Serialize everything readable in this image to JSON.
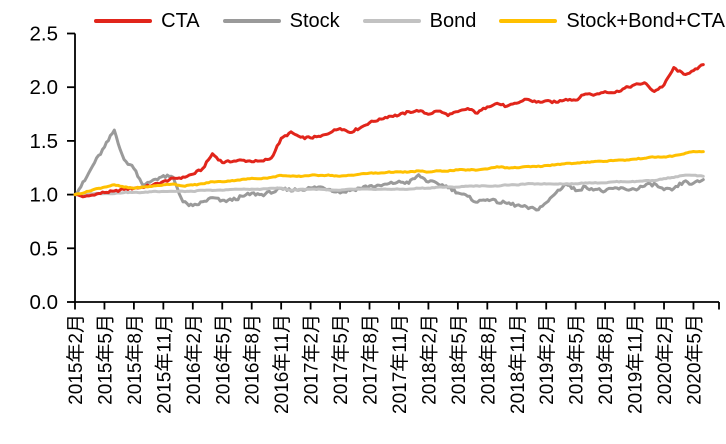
{
  "chart_data": {
    "type": "line",
    "title": "",
    "background": "#FFFFFF",
    "grid": false,
    "legend_position": "top-right",
    "x_axis": {
      "label": "",
      "start_month": "2015-02",
      "point_interval": "1 month",
      "n_points": 65,
      "tick_every_months": 3,
      "tick_labels": [
        "2015年2月",
        "2015年5月",
        "2015年8月",
        "2015年11月",
        "2016年2月",
        "2016年5月",
        "2016年8月",
        "2016年11月",
        "2017年2月",
        "2017年5月",
        "2017年8月",
        "2017年11月",
        "2018年2月",
        "2018年5月",
        "2018年8月",
        "2018年11月",
        "2019年2月",
        "2019年5月",
        "2019年8月",
        "2019年11月",
        "2020年2月",
        "2020年5月"
      ]
    },
    "y_axis": {
      "label": "",
      "min": 0.0,
      "max": 2.5,
      "tick_step": 0.5,
      "tick_labels": [
        "0.0",
        "0.5",
        "1.0",
        "1.5",
        "2.0",
        "2.5"
      ]
    },
    "series": [
      {
        "name": "CTA",
        "color": "#E1251B",
        "values": [
          1.0,
          0.98,
          1.0,
          1.02,
          1.03,
          1.05,
          1.06,
          1.07,
          1.09,
          1.12,
          1.15,
          1.16,
          1.19,
          1.24,
          1.38,
          1.3,
          1.31,
          1.32,
          1.31,
          1.31,
          1.34,
          1.52,
          1.58,
          1.53,
          1.53,
          1.54,
          1.58,
          1.62,
          1.58,
          1.62,
          1.67,
          1.7,
          1.73,
          1.74,
          1.77,
          1.78,
          1.75,
          1.78,
          1.74,
          1.77,
          1.8,
          1.76,
          1.82,
          1.85,
          1.82,
          1.85,
          1.89,
          1.86,
          1.87,
          1.86,
          1.89,
          1.88,
          1.94,
          1.93,
          1.96,
          1.95,
          1.99,
          2.02,
          2.04,
          1.96,
          2.02,
          2.18,
          2.12,
          2.15,
          2.21
        ]
      },
      {
        "name": "Stock",
        "color": "#9A9A9A",
        "values": [
          1.0,
          1.13,
          1.3,
          1.44,
          1.6,
          1.32,
          1.25,
          1.08,
          1.14,
          1.17,
          1.16,
          0.93,
          0.89,
          0.93,
          0.97,
          0.94,
          0.95,
          0.98,
          1.01,
          1.0,
          1.02,
          1.05,
          1.04,
          1.05,
          1.06,
          1.07,
          1.05,
          1.02,
          1.04,
          1.06,
          1.08,
          1.08,
          1.1,
          1.12,
          1.11,
          1.18,
          1.12,
          1.1,
          1.07,
          1.02,
          0.98,
          0.93,
          0.96,
          0.93,
          0.92,
          0.9,
          0.88,
          0.86,
          0.92,
          1.02,
          1.1,
          1.04,
          1.07,
          1.05,
          1.03,
          1.06,
          1.05,
          1.05,
          1.08,
          1.1,
          1.04,
          1.05,
          1.12,
          1.1,
          1.14
        ]
      },
      {
        "name": "Bond",
        "color": "#C2C2C2",
        "values": [
          1.0,
          1.0,
          1.01,
          1.01,
          1.01,
          1.02,
          1.02,
          1.02,
          1.03,
          1.03,
          1.03,
          1.03,
          1.03,
          1.04,
          1.04,
          1.04,
          1.05,
          1.05,
          1.05,
          1.05,
          1.06,
          1.06,
          1.04,
          1.05,
          1.05,
          1.05,
          1.04,
          1.04,
          1.05,
          1.05,
          1.05,
          1.05,
          1.05,
          1.05,
          1.05,
          1.06,
          1.06,
          1.07,
          1.07,
          1.07,
          1.08,
          1.08,
          1.08,
          1.08,
          1.09,
          1.09,
          1.1,
          1.1,
          1.1,
          1.1,
          1.1,
          1.1,
          1.11,
          1.11,
          1.11,
          1.12,
          1.12,
          1.12,
          1.13,
          1.13,
          1.15,
          1.16,
          1.18,
          1.18,
          1.17
        ]
      },
      {
        "name": "Stock+Bond+CTA",
        "color": "#FFC000",
        "values": [
          1.0,
          1.02,
          1.05,
          1.07,
          1.09,
          1.07,
          1.06,
          1.07,
          1.08,
          1.09,
          1.1,
          1.08,
          1.09,
          1.1,
          1.12,
          1.12,
          1.13,
          1.14,
          1.15,
          1.15,
          1.16,
          1.18,
          1.17,
          1.17,
          1.18,
          1.18,
          1.18,
          1.17,
          1.18,
          1.19,
          1.2,
          1.2,
          1.21,
          1.21,
          1.21,
          1.22,
          1.21,
          1.22,
          1.22,
          1.23,
          1.23,
          1.23,
          1.24,
          1.26,
          1.25,
          1.25,
          1.26,
          1.26,
          1.27,
          1.28,
          1.29,
          1.29,
          1.3,
          1.31,
          1.31,
          1.32,
          1.32,
          1.33,
          1.34,
          1.35,
          1.35,
          1.36,
          1.38,
          1.4,
          1.4
        ]
      }
    ],
    "axis_color": "#000000"
  }
}
